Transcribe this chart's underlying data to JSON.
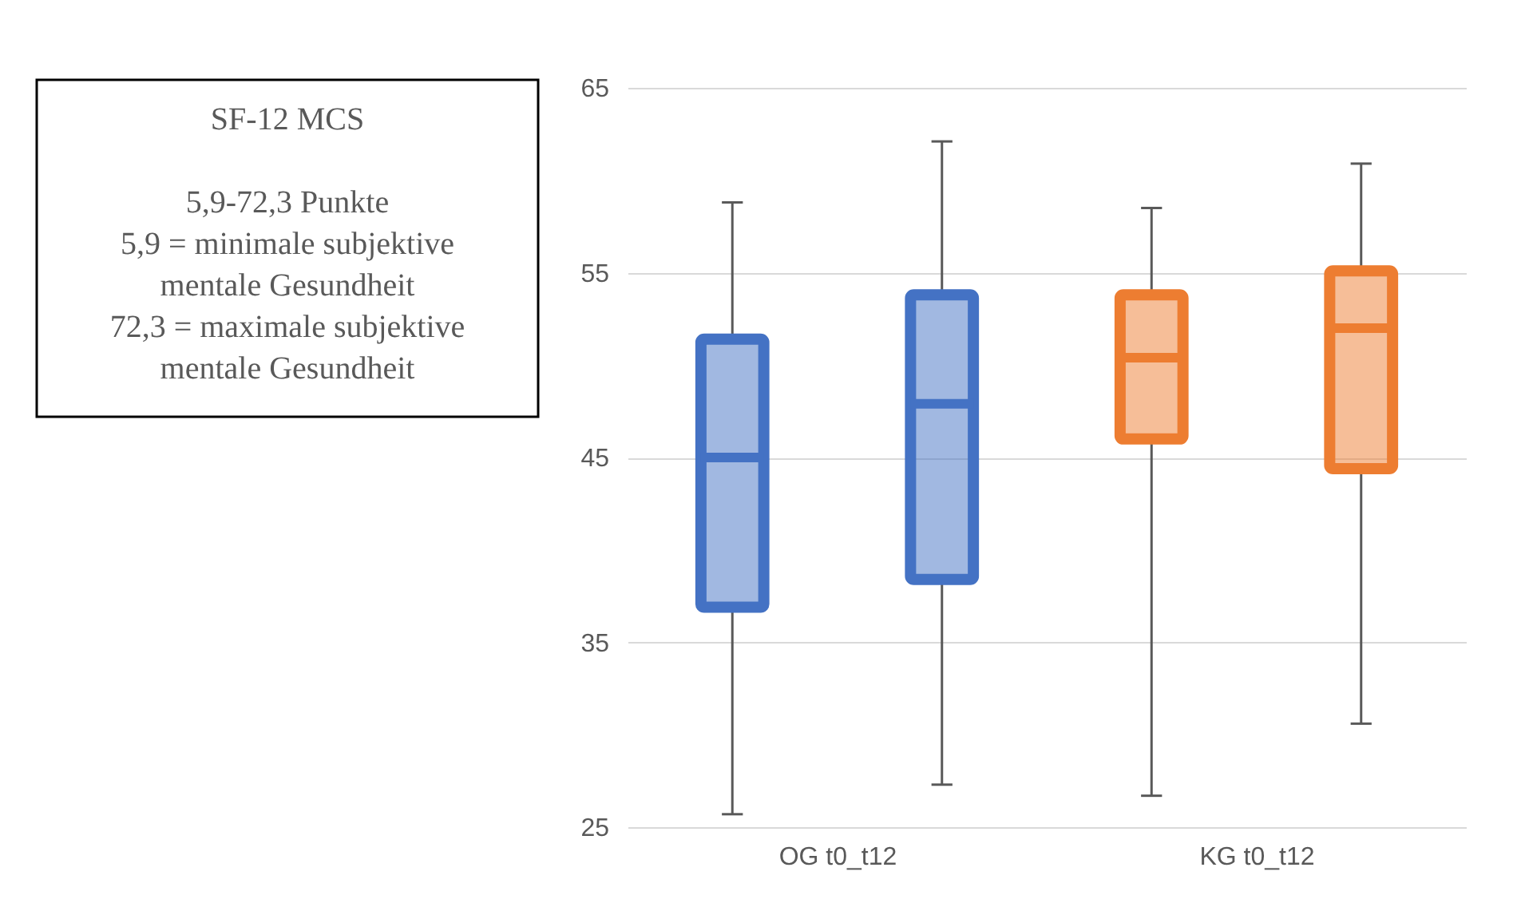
{
  "chart_data": {
    "type": "box",
    "categories": [
      "OG t0_t12",
      "KG t0_t12"
    ],
    "series": [
      {
        "colors": [
          "#4472c4",
          "#ed7d31"
        ],
        "boxes": [
          {
            "low": 25.7,
            "q1": 36.9,
            "median": 45.0,
            "q3": 51.4,
            "high": 58.8
          },
          {
            "low": 26.7,
            "q1": 46.0,
            "median": 50.4,
            "q3": 53.8,
            "high": 58.5
          }
        ]
      },
      {
        "colors": [
          "#4472c4",
          "#ed7d31"
        ],
        "boxes": [
          {
            "low": 27.3,
            "q1": 38.4,
            "median": 47.9,
            "q3": 53.8,
            "high": 62.1
          },
          {
            "low": 30.6,
            "q1": 44.4,
            "median": 52.0,
            "q3": 55.1,
            "high": 60.9
          }
        ]
      }
    ],
    "ylim": [
      25,
      65
    ],
    "yticks": [
      25,
      35,
      45,
      55,
      65
    ],
    "grid": "y",
    "annotations": [
      "SF-12 MCS",
      "5,9-72,3 Punkte",
      "5,9 = minimale subjektive mentale Gesundheit",
      "72,3 = maximale subjektive mentale Gesundheit"
    ]
  }
}
